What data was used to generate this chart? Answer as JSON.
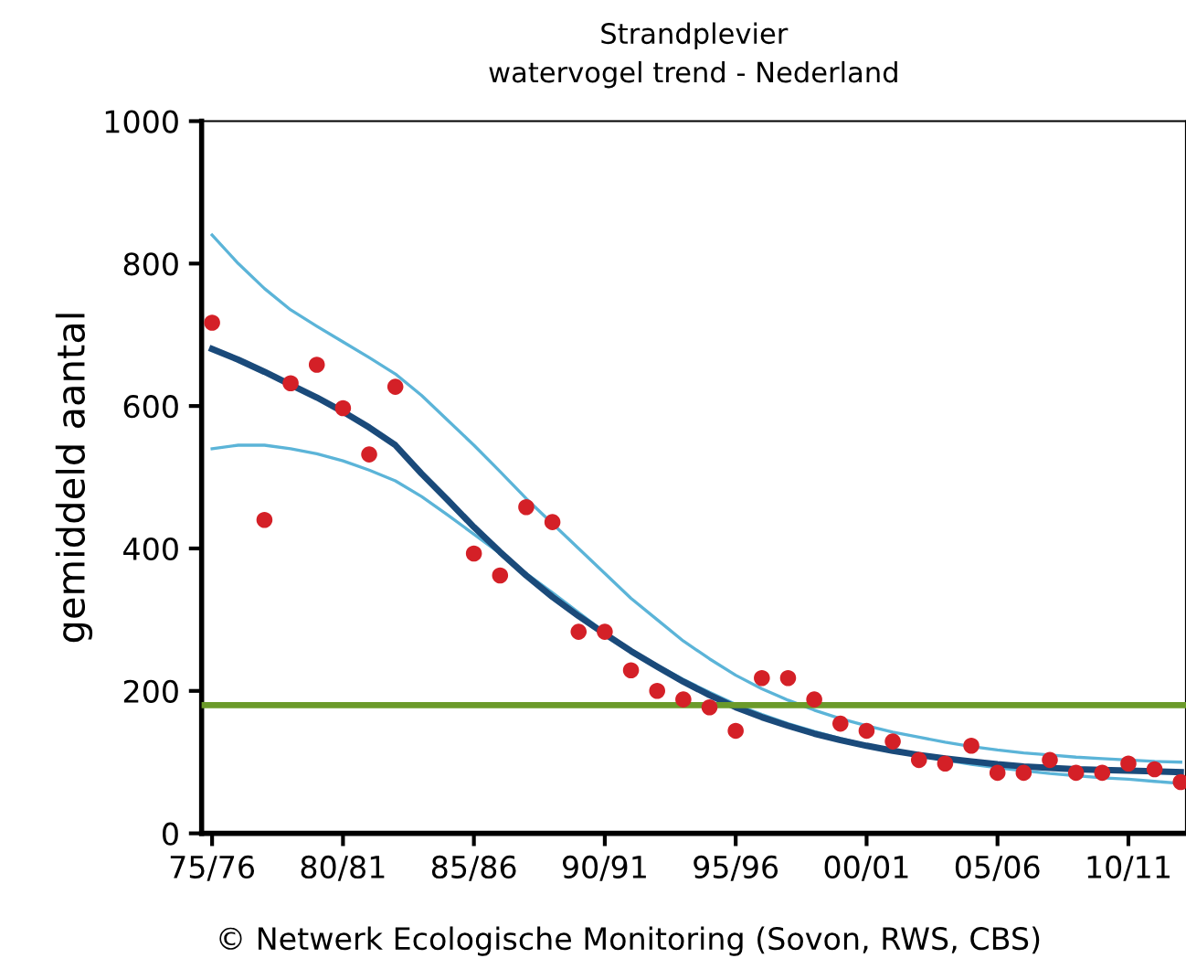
{
  "chart_data": {
    "type": "scatter",
    "title": "Strandplevier",
    "subtitle": "watervogel trend - Nederland",
    "ylabel": "gemiddeld aantal",
    "categories": [
      "75/76",
      null,
      null,
      null,
      null,
      "80/81",
      null,
      null,
      null,
      null,
      "85/86",
      null,
      null,
      null,
      null,
      "90/91",
      null,
      null,
      null,
      null,
      "95/96",
      null,
      null,
      null,
      null,
      "00/01",
      null,
      null,
      null,
      null,
      "05/06",
      null,
      null,
      null,
      null,
      "10/11",
      null,
      null
    ],
    "series": [
      {
        "type": "line",
        "color": "#5bb4d8",
        "values": [
          840,
          800,
          765,
          735,
          712,
          690,
          668,
          645,
          615,
          580,
          545,
          508,
          470,
          435,
          400,
          365,
          330,
          300,
          270,
          245,
          222,
          203,
          187,
          173,
          161,
          151,
          142,
          135,
          128,
          122,
          117,
          113,
          110,
          107,
          105,
          103,
          101,
          100
        ]
      },
      {
        "type": "line",
        "color": "#5bb4d8",
        "values": [
          540,
          545,
          545,
          540,
          533,
          523,
          510,
          495,
          473,
          447,
          420,
          393,
          365,
          338,
          310,
          282,
          257,
          236,
          216,
          198,
          181,
          167,
          154,
          143,
          133,
          124,
          116,
          109,
          103,
          97,
          92,
          88,
          84,
          81,
          78,
          76,
          73,
          70
        ]
      },
      {
        "type": "line",
        "color": "#1a4a7a",
        "values": [
          680,
          665,
          648,
          630,
          612,
          592,
          570,
          545,
          505,
          468,
          430,
          395,
          362,
          332,
          305,
          280,
          256,
          234,
          213,
          194,
          177,
          163,
          151,
          140,
          131,
          123,
          116,
          110,
          105,
          101,
          97,
          94,
          92,
          90,
          89,
          88,
          87,
          86
        ]
      },
      {
        "color": "#d42027",
        "values": [
          717,
          null,
          440,
          632,
          658,
          597,
          532,
          627,
          null,
          null,
          393,
          362,
          458,
          437,
          283,
          283,
          229,
          200,
          188,
          177,
          144,
          218,
          218,
          188,
          154,
          144,
          129,
          103,
          98,
          123,
          85,
          85,
          103,
          85,
          85,
          98,
          90,
          72
        ]
      }
    ],
    "ylim": [
      0,
      1000
    ],
    "yticks": [
      0,
      200,
      400,
      600,
      800,
      1000
    ],
    "grid": false,
    "legend": false,
    "ref_lines": [
      {
        "axis": "y",
        "value": 180,
        "color": "#6b9a2a"
      }
    ],
    "annotations": [
      "© Netwerk Ecologische Monitoring (Sovon, RWS, CBS)"
    ]
  }
}
